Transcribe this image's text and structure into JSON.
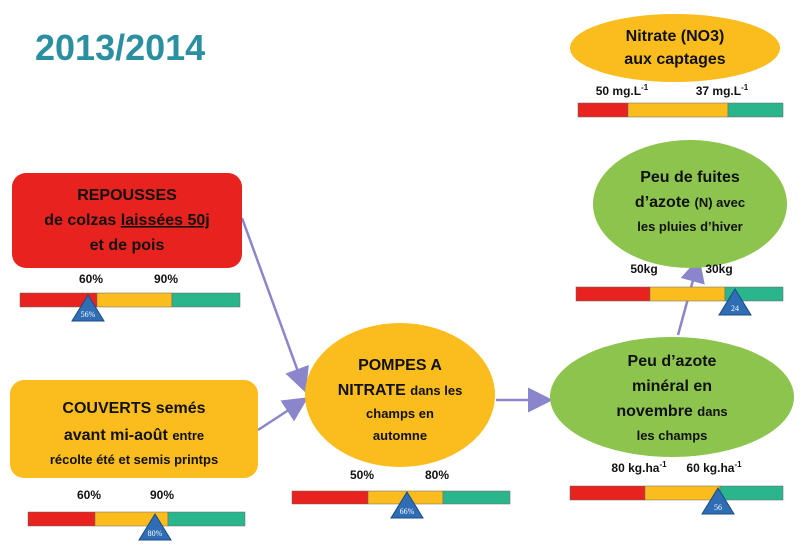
{
  "title": "2013/2014",
  "nodes": [
    {
      "lines": [
        [
          "Nitrate (NO3)"
        ],
        [
          "aux captages"
        ]
      ]
    },
    {
      "lines": [
        [
          "Peu de fuites"
        ],
        [
          "d’azote ",
          "(N) avec"
        ],
        [
          "les pluies d’hiver"
        ]
      ]
    },
    {
      "lines": [
        [
          "REPOUSSES"
        ],
        [
          "de colzas ",
          "laissées 50j"
        ],
        [
          "et de pois"
        ]
      ]
    },
    {
      "lines": [
        [
          "COUVERTS semés"
        ],
        [
          "avant mi-août ",
          "entre"
        ],
        [
          "récolte été et semis printps"
        ]
      ]
    },
    {
      "lines": [
        [
          "POMPES A"
        ],
        [
          "NITRATE ",
          "dans les"
        ],
        [
          "champs en"
        ],
        [
          "automne"
        ]
      ]
    },
    {
      "lines": [
        [
          "Peu d’azote"
        ],
        [
          "minéral en"
        ],
        [
          "novembre ",
          "dans"
        ],
        [
          "les champs"
        ]
      ]
    }
  ],
  "scales": [
    {
      "labels": [
        {
          "text": "50 mg.L",
          "sup": "-1"
        },
        {
          "text": "37 mg.L",
          "sup": "-1"
        }
      ]
    },
    {
      "labels": [
        {
          "text": "50kg"
        },
        {
          "text": "30kg"
        }
      ],
      "marker": "24"
    },
    {
      "labels": [
        {
          "text": "60%"
        },
        {
          "text": "90%"
        }
      ],
      "marker": "56%"
    },
    {
      "labels": [
        {
          "text": "60%"
        },
        {
          "text": "90%"
        }
      ],
      "marker": "80%"
    },
    {
      "labels": [
        {
          "text": "50%"
        },
        {
          "text": "80%"
        }
      ],
      "marker": "66%"
    },
    {
      "labels": [
        {
          "text": "80 kg.ha",
          "sup": "-1"
        },
        {
          "text": "60 kg.ha",
          "sup": "-1"
        }
      ],
      "marker": "56"
    }
  ]
}
